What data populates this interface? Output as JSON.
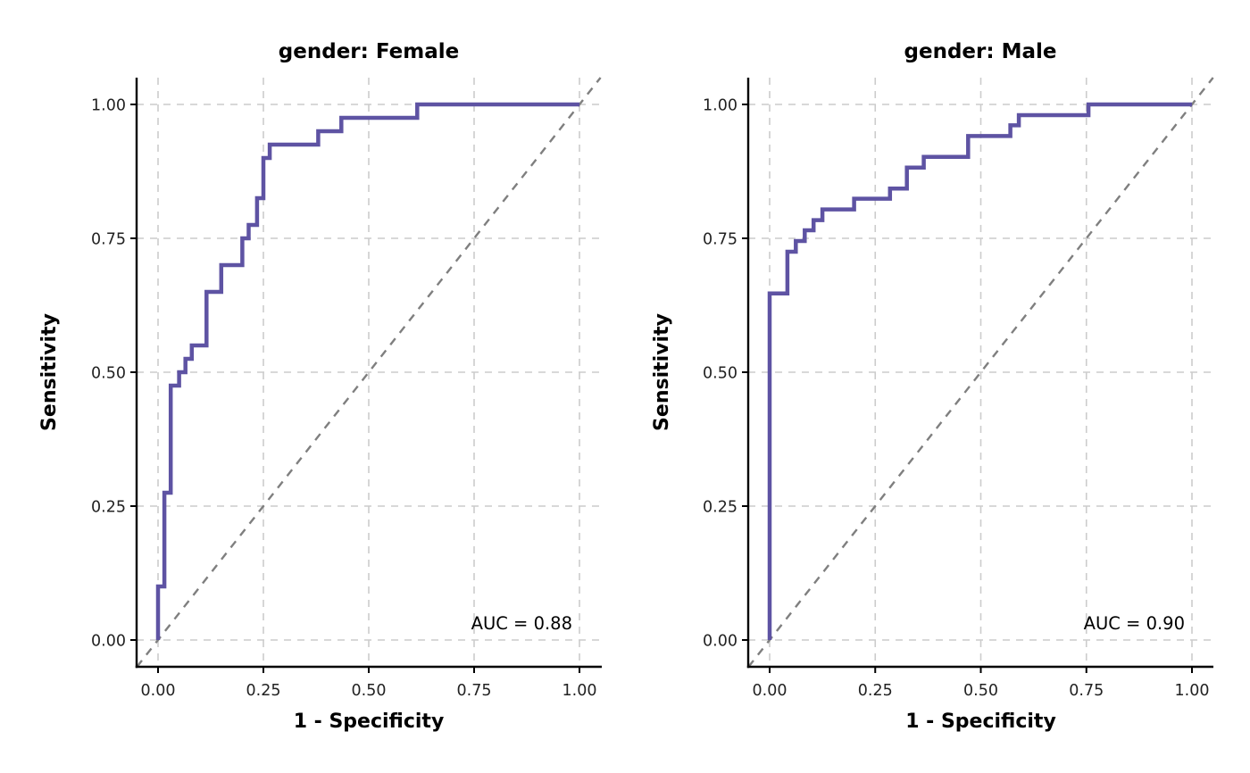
{
  "chart_data": [
    {
      "type": "line",
      "title": "gender: Female",
      "xlabel": "1 - Specificity",
      "ylabel": "Sensitivity",
      "xlim": [
        0,
        1
      ],
      "ylim": [
        0,
        1
      ],
      "xticks": [
        "0.00",
        "0.25",
        "0.50",
        "0.75",
        "1.00"
      ],
      "yticks": [
        "0.00",
        "0.25",
        "0.50",
        "0.75",
        "1.00"
      ],
      "grid": true,
      "reference_line": "diagonal",
      "annotation": "AUC = 0.88",
      "auc": 0.88,
      "line_color": "#5E53A3",
      "series": [
        {
          "name": "ROC",
          "x": [
            0.0,
            0.0,
            0.015,
            0.015,
            0.03,
            0.03,
            0.05,
            0.05,
            0.065,
            0.065,
            0.08,
            0.08,
            0.115,
            0.115,
            0.15,
            0.15,
            0.2,
            0.2,
            0.215,
            0.215,
            0.235,
            0.235,
            0.25,
            0.25,
            0.265,
            0.265,
            0.38,
            0.38,
            0.435,
            0.435,
            0.615,
            0.615,
            1.0
          ],
          "y": [
            0.0,
            0.1,
            0.1,
            0.275,
            0.275,
            0.475,
            0.475,
            0.5,
            0.5,
            0.525,
            0.525,
            0.55,
            0.55,
            0.65,
            0.65,
            0.7,
            0.7,
            0.75,
            0.75,
            0.775,
            0.775,
            0.825,
            0.825,
            0.9,
            0.9,
            0.925,
            0.925,
            0.95,
            0.95,
            0.975,
            0.975,
            1.0,
            1.0
          ]
        }
      ]
    },
    {
      "type": "line",
      "title": "gender: Male",
      "xlabel": "1 - Specificity",
      "ylabel": "Sensitivity",
      "xlim": [
        0,
        1
      ],
      "ylim": [
        0,
        1
      ],
      "xticks": [
        "0.00",
        "0.25",
        "0.50",
        "0.75",
        "1.00"
      ],
      "yticks": [
        "0.00",
        "0.25",
        "0.50",
        "0.75",
        "1.00"
      ],
      "grid": true,
      "reference_line": "diagonal",
      "annotation": "AUC = 0.90",
      "auc": 0.9,
      "line_color": "#5E53A3",
      "series": [
        {
          "name": "ROC",
          "x": [
            0.0,
            0.0,
            0.042,
            0.042,
            0.062,
            0.062,
            0.083,
            0.083,
            0.104,
            0.104,
            0.125,
            0.125,
            0.2,
            0.2,
            0.285,
            0.285,
            0.325,
            0.325,
            0.365,
            0.365,
            0.47,
            0.47,
            0.57,
            0.57,
            0.59,
            0.59,
            0.755,
            0.755,
            1.0
          ],
          "y": [
            0.0,
            0.647,
            0.647,
            0.725,
            0.725,
            0.745,
            0.745,
            0.765,
            0.765,
            0.784,
            0.784,
            0.804,
            0.804,
            0.824,
            0.824,
            0.843,
            0.843,
            0.882,
            0.882,
            0.902,
            0.902,
            0.941,
            0.941,
            0.961,
            0.961,
            0.98,
            0.98,
            1.0,
            1.0
          ]
        }
      ]
    }
  ]
}
